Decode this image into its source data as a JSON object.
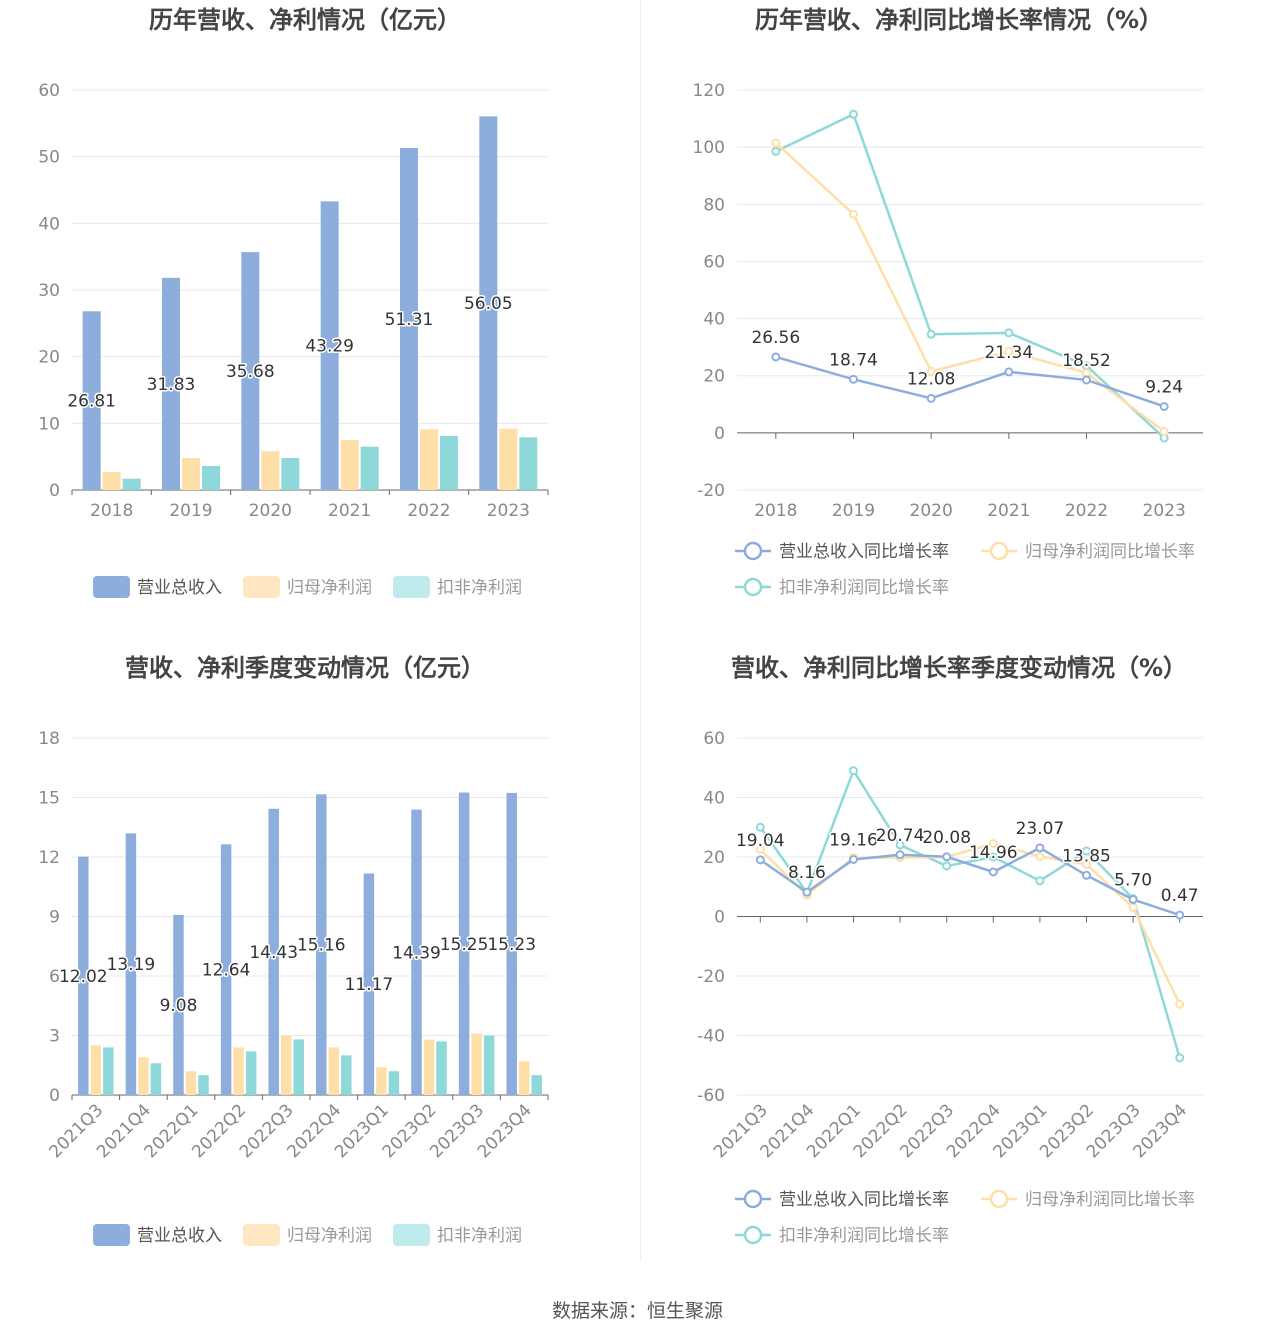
{
  "source_text": "数据来源：恒生聚源",
  "colors": {
    "revenue": "#8DAEDC",
    "net_profit": "#FFDFA8",
    "deducted_profit": "#8ED8DA",
    "grid": "#E6E8F0",
    "axis": "#888888"
  },
  "chart_data": [
    {
      "type": "bar",
      "title": "历年营收、净利情况（亿元）",
      "categories": [
        "2018",
        "2019",
        "2020",
        "2021",
        "2022",
        "2023"
      ],
      "series": [
        {
          "name": "营业总收入",
          "values": [
            26.81,
            31.83,
            35.68,
            43.29,
            51.31,
            56.05
          ]
        },
        {
          "name": "归母净利润",
          "values": [
            2.7,
            4.8,
            5.8,
            7.5,
            9.1,
            9.2
          ]
        },
        {
          "name": "扣非净利润",
          "values": [
            1.7,
            3.6,
            4.8,
            6.5,
            8.1,
            7.9
          ]
        }
      ],
      "labeled_series": 0,
      "ylim": [
        0,
        60
      ],
      "yticks": [
        0,
        10,
        20,
        30,
        40,
        50,
        60
      ],
      "grid": true,
      "legend": "bottom"
    },
    {
      "type": "line",
      "title": "历年营收、净利同比增长率情况（%）",
      "categories": [
        "2018",
        "2019",
        "2020",
        "2021",
        "2022",
        "2023"
      ],
      "series": [
        {
          "name": "营业总收入同比增长率",
          "values": [
            26.56,
            18.74,
            12.08,
            21.34,
            18.52,
            9.24
          ]
        },
        {
          "name": "归母净利润同比增长率",
          "values": [
            101.5,
            76.5,
            21.5,
            28.5,
            21.0,
            0.5
          ]
        },
        {
          "name": "扣非净利润同比增长率",
          "values": [
            98.5,
            111.5,
            34.5,
            35.0,
            23.5,
            -1.8
          ]
        }
      ],
      "labeled_series": 0,
      "ylim": [
        -20,
        120
      ],
      "yticks": [
        -20,
        0,
        20,
        40,
        60,
        80,
        100,
        120
      ],
      "grid": true,
      "legend": "bottom"
    },
    {
      "type": "bar",
      "title": "营收、净利季度变动情况（亿元）",
      "categories": [
        "2021Q3",
        "2021Q4",
        "2022Q1",
        "2022Q2",
        "2022Q3",
        "2022Q4",
        "2023Q1",
        "2023Q2",
        "2023Q3",
        "2023Q4"
      ],
      "series": [
        {
          "name": "营业总收入",
          "values": [
            12.02,
            13.19,
            9.08,
            12.64,
            14.43,
            15.16,
            11.17,
            14.39,
            15.25,
            15.23
          ]
        },
        {
          "name": "归母净利润",
          "values": [
            2.5,
            1.9,
            1.2,
            2.4,
            3.0,
            2.4,
            1.4,
            2.8,
            3.1,
            1.7
          ]
        },
        {
          "name": "扣非净利润",
          "values": [
            2.4,
            1.6,
            1.0,
            2.2,
            2.8,
            2.0,
            1.2,
            2.7,
            3.0,
            1.0
          ]
        }
      ],
      "labeled_series": 0,
      "ylim": [
        0,
        18
      ],
      "yticks": [
        0,
        3,
        6,
        9,
        12,
        15,
        18
      ],
      "grid": true,
      "legend": "bottom",
      "rotated_xlabels": true
    },
    {
      "type": "line",
      "title": "营收、净利同比增长率季度变动情况（%）",
      "categories": [
        "2021Q3",
        "2021Q4",
        "2022Q1",
        "2022Q2",
        "2022Q3",
        "2022Q4",
        "2023Q1",
        "2023Q2",
        "2023Q3",
        "2023Q4"
      ],
      "series": [
        {
          "name": "营业总收入同比增长率",
          "values": [
            19.04,
            8.16,
            19.16,
            20.74,
            20.08,
            14.96,
            23.07,
            13.85,
            5.7,
            0.47
          ]
        },
        {
          "name": "归母净利润同比增长率",
          "values": [
            22.5,
            7.2,
            19.8,
            19.8,
            20.0,
            24.5,
            20.2,
            17.5,
            3.0,
            -29.5
          ]
        },
        {
          "name": "扣非净利润同比增长率",
          "values": [
            30.0,
            8.0,
            49.0,
            24.0,
            17.0,
            20.0,
            12.0,
            22.0,
            6.0,
            -47.5
          ]
        }
      ],
      "labeled_series": 0,
      "ylim": [
        -60,
        60
      ],
      "yticks": [
        -60,
        -40,
        -20,
        0,
        20,
        40,
        60
      ],
      "grid": true,
      "legend": "bottom",
      "rotated_xlabels": true
    }
  ]
}
